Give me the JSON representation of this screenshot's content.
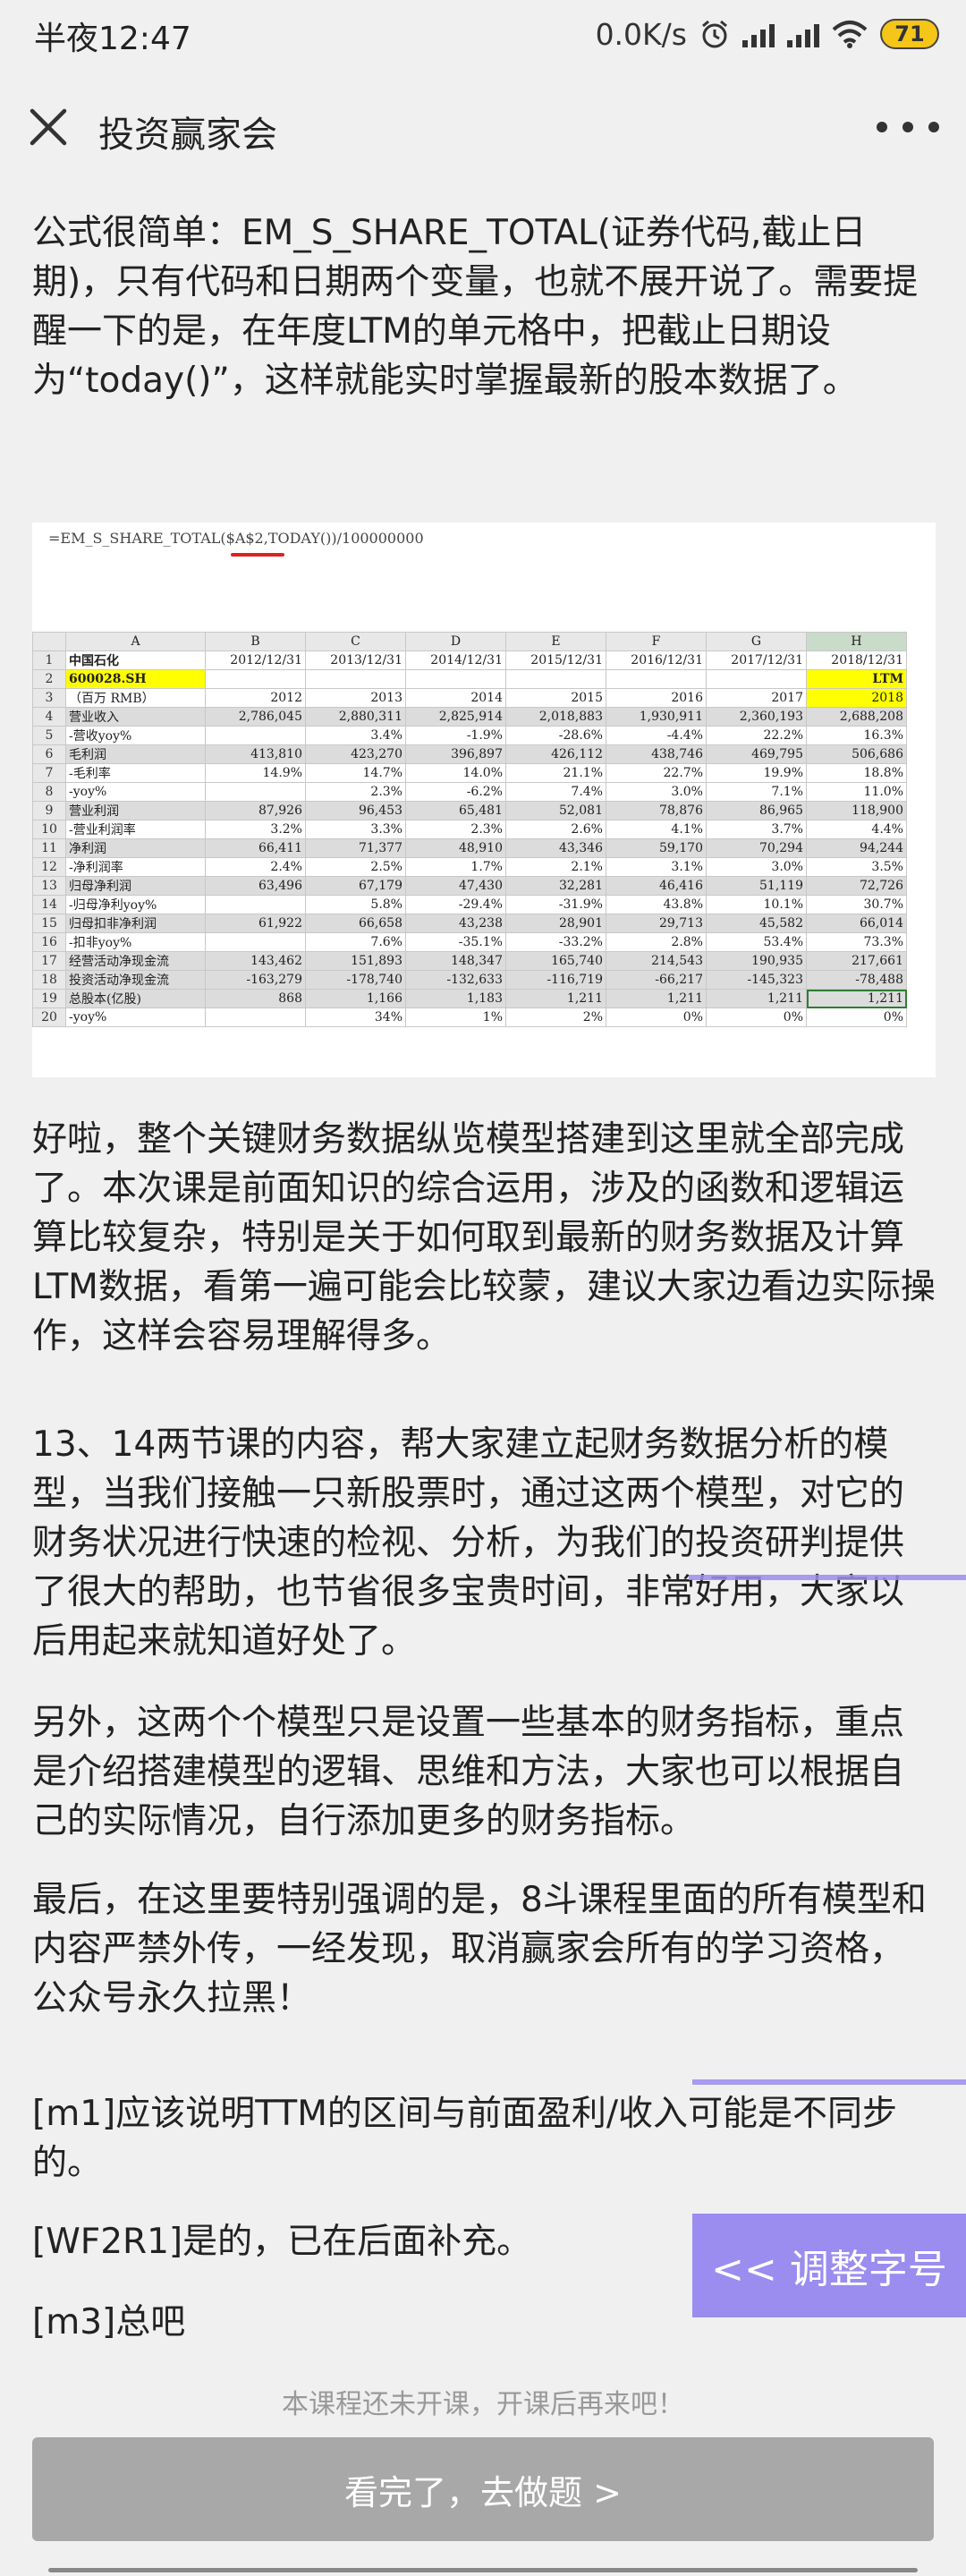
{
  "status_bar": {
    "time": "半夜12:47",
    "speed": "0.0K/s",
    "battery": "71"
  },
  "header": {
    "title": "投资赢家会"
  },
  "content": {
    "p1": "公式很简单：EM_S_SHARE_TOTAL(证券代码,截止日期)，只有代码和日期两个变量，也就不展开说了。需要提醒一下的是，在年度LTM的单元格中，把截止日期设为“today()”，这样就能实时掌握最新的股本数据了。",
    "p2": "好啦，整个关键财务数据纵览模型搭建到这里就全部完成了。本次课是前面知识的综合运用，涉及的函数和逻辑运算比较复杂，特别是关于如何取到最新的财务数据及计算LTM数据，看第一遍可能会比较蒙，建议大家边看边实际操作，这样会容易理解得多。",
    "p3": "13、14两节课的内容，帮大家建立起财务数据分析的模型，当我们接触一只新股票时，通过这两个模型，对它的财务状况进行快速的检视、分析，为我们的投资研判提供了很大的帮助，也节省很多宝贵时间，非常好用，大家以后用起来就知道好处了。",
    "p4": "另外，这两个个模型只是设置一些基本的财务指标，重点是介绍搭建模型的逻辑、思维和方法，大家也可以根据自己的实际情况，自行添加更多的财务指标。",
    "p5": "最后，在这里要特别强调的是，8斗课程里面的所有模型和内容严禁外传，一经发现，取消赢家会所有的学习资格，公众号永久拉黑！",
    "n1": "[m1]应该说明TTM的区间与前面盈利/收入可能是不同步的。",
    "n2": "[WF2R1]是的，已在后面补充。",
    "n3": "[m3]总吧"
  },
  "sheet": {
    "formula": "=EM_S_SHARE_TOTAL($A$2,TODAY())/100000000",
    "columns": [
      "",
      "A",
      "B",
      "C",
      "D",
      "E",
      "F",
      "G",
      "H"
    ],
    "rows": [
      [
        "1",
        "中国石化",
        "2012/12/31",
        "2013/12/31",
        "2014/12/31",
        "2015/12/31",
        "2016/12/31",
        "2017/12/31",
        "2018/12/31"
      ],
      [
        "2",
        "600028.SH",
        "",
        "",
        "",
        "",
        "",
        "",
        "LTM"
      ],
      [
        "3",
        "（百万 RMB）",
        "2012",
        "2013",
        "2014",
        "2015",
        "2016",
        "2017",
        "2018"
      ],
      [
        "4",
        "营业收入",
        "2,786,045",
        "2,880,311",
        "2,825,914",
        "2,018,883",
        "1,930,911",
        "2,360,193",
        "2,688,208"
      ],
      [
        "5",
        "-营收yoy%",
        "",
        "3.4%",
        "-1.9%",
        "-28.6%",
        "-4.4%",
        "22.2%",
        "16.3%"
      ],
      [
        "6",
        "毛利润",
        "413,810",
        "423,270",
        "396,897",
        "426,112",
        "438,746",
        "469,795",
        "506,686"
      ],
      [
        "7",
        "-毛利率",
        "14.9%",
        "14.7%",
        "14.0%",
        "21.1%",
        "22.7%",
        "19.9%",
        "18.8%"
      ],
      [
        "8",
        "-yoy%",
        "",
        "2.3%",
        "-6.2%",
        "7.4%",
        "3.0%",
        "7.1%",
        "11.0%"
      ],
      [
        "9",
        "营业利润",
        "87,926",
        "96,453",
        "65,481",
        "52,081",
        "78,876",
        "86,965",
        "118,900"
      ],
      [
        "10",
        "-营业利润率",
        "3.2%",
        "3.3%",
        "2.3%",
        "2.6%",
        "4.1%",
        "3.7%",
        "4.4%"
      ],
      [
        "11",
        "净利润",
        "66,411",
        "71,377",
        "48,910",
        "43,346",
        "59,170",
        "70,294",
        "94,244"
      ],
      [
        "12",
        "-净利润率",
        "2.4%",
        "2.5%",
        "1.7%",
        "2.1%",
        "3.1%",
        "3.0%",
        "3.5%"
      ],
      [
        "13",
        "归母净利润",
        "63,496",
        "67,179",
        "47,430",
        "32,281",
        "46,416",
        "51,119",
        "72,726"
      ],
      [
        "14",
        "-归母净利yoy%",
        "",
        "5.8%",
        "-29.4%",
        "-31.9%",
        "43.8%",
        "10.1%",
        "30.7%"
      ],
      [
        "15",
        "归母扣非净利润",
        "61,922",
        "66,658",
        "43,238",
        "28,901",
        "29,713",
        "45,582",
        "66,014"
      ],
      [
        "16",
        "-扣非yoy%",
        "",
        "7.6%",
        "-35.1%",
        "-33.2%",
        "2.8%",
        "53.4%",
        "73.3%"
      ],
      [
        "17",
        "经营活动净现金流",
        "143,462",
        "151,893",
        "148,347",
        "165,740",
        "214,543",
        "190,935",
        "217,661"
      ],
      [
        "18",
        "投资活动净现金流",
        "-163,279",
        "-178,740",
        "-132,633",
        "-116,719",
        "-66,217",
        "-145,323",
        "-78,488"
      ],
      [
        "19",
        "总股本(亿股)",
        "868",
        "1,166",
        "1,183",
        "1,211",
        "1,211",
        "1,211",
        "1,211"
      ],
      [
        "20",
        "-yoy%",
        "",
        "34%",
        "1%",
        "2%",
        "0%",
        "0%",
        "0%"
      ]
    ]
  },
  "buttons": {
    "font_size": "<< 调整字号",
    "done": "看完了，去做题 >"
  },
  "notice": "本课程还未开课，开课后再来吧！"
}
